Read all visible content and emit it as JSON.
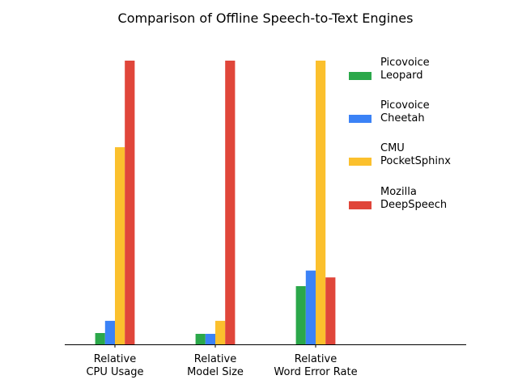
{
  "chart_data": {
    "type": "bar",
    "title": "Comparison of Offline Speech-to-Text Engines",
    "xlabel": "",
    "ylabel": "",
    "categories": [
      [
        "Relative",
        "CPU Usage"
      ],
      [
        "Relative",
        "Model Size"
      ],
      [
        "Relative",
        "Word Error Rate"
      ]
    ],
    "ylim": [
      0,
      1
    ],
    "legend_position": "top-right",
    "series": [
      {
        "name": [
          "Picovoice",
          "Leopard"
        ],
        "color": "#2ba84a",
        "values": [
          0.04,
          0.037,
          0.205
        ]
      },
      {
        "name": [
          "Picovoice",
          "Cheetah"
        ],
        "color": "#3b82f6",
        "values": [
          0.083,
          0.037,
          0.26
        ]
      },
      {
        "name": [
          "CMU",
          "PocketSphinx"
        ],
        "color": "#fbc02d",
        "values": [
          0.695,
          0.083,
          1.0
        ]
      },
      {
        "name": [
          "Mozilla",
          "DeepSpeech"
        ],
        "color": "#e0463a",
        "values": [
          1.0,
          1.0,
          0.236
        ]
      }
    ]
  }
}
